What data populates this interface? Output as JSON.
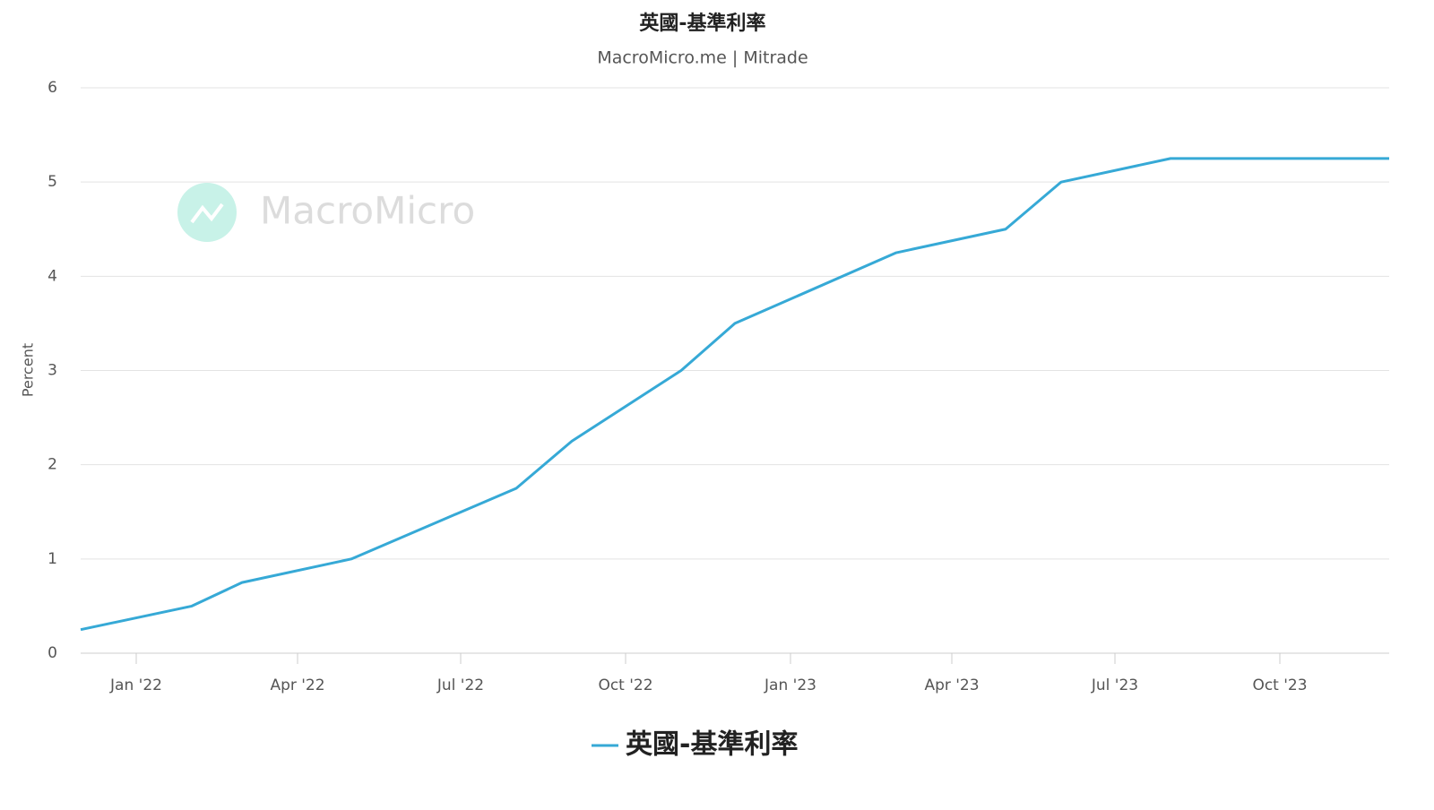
{
  "chart_data": {
    "type": "line",
    "title": "英國-基準利率",
    "subtitle": "MacroMicro.me | Mitrade",
    "watermark": "MacroMicro",
    "y_label": "Percent",
    "x": [
      "2021-12",
      "2022-02",
      "2022-03",
      "2022-05",
      "2022-08",
      "2022-09",
      "2022-11",
      "2022-12",
      "2023-03",
      "2023-05",
      "2023-06",
      "2023-08",
      "2023-12"
    ],
    "series": [
      {
        "name": "英國-基準利率",
        "color": "#36a9d6",
        "values": [
          0.25,
          0.5,
          0.75,
          1.0,
          1.75,
          2.25,
          3.0,
          3.5,
          4.25,
          4.5,
          5.0,
          5.25,
          5.25
        ]
      }
    ],
    "xlim": [
      "2021-12",
      "2023-12"
    ],
    "xticks": [
      {
        "value": "2022-01",
        "label": "Jan '22"
      },
      {
        "value": "2022-04",
        "label": "Apr '22"
      },
      {
        "value": "2022-07",
        "label": "Jul '22"
      },
      {
        "value": "2022-10",
        "label": "Oct '22"
      },
      {
        "value": "2023-01",
        "label": "Jan '23"
      },
      {
        "value": "2023-04",
        "label": "Apr '23"
      },
      {
        "value": "2023-07",
        "label": "Jul '23"
      },
      {
        "value": "2023-10",
        "label": "Oct '23"
      }
    ],
    "ylim": [
      0,
      6
    ],
    "yticks": [
      0,
      1,
      2,
      3,
      4,
      5,
      6
    ],
    "grid": true
  }
}
